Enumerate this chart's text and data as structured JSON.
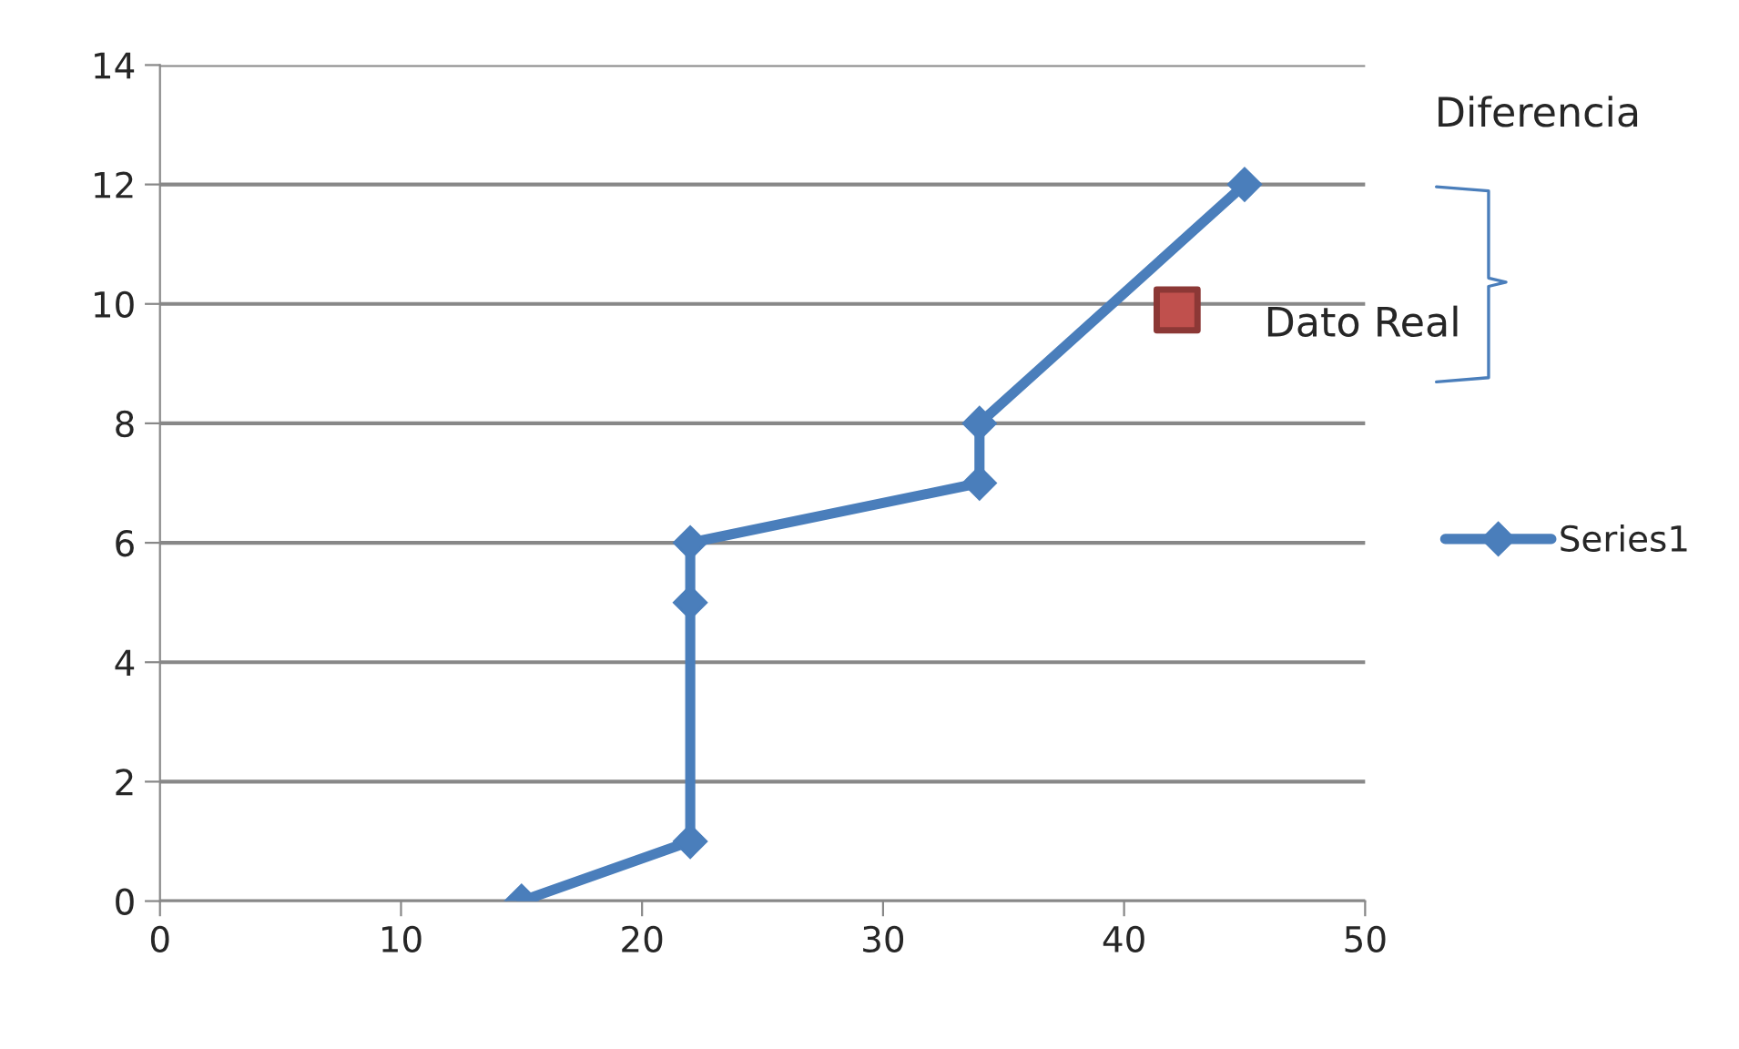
{
  "chart_data": {
    "type": "line",
    "series": [
      {
        "name": "Series1",
        "color": "#4a7ebb",
        "marker": "diamond",
        "x": [
          15,
          22,
          22,
          22,
          34,
          34,
          45
        ],
        "values": [
          0,
          1,
          5,
          6,
          7,
          8,
          12
        ]
      },
      {
        "type": "scatter",
        "color": "#c0504d",
        "marker": "square",
        "x": [
          42.2
        ],
        "values": [
          9.9
        ]
      }
    ],
    "xlim": [
      0,
      50
    ],
    "xticks": [
      0,
      10,
      20,
      30,
      40,
      50
    ],
    "ylim": [
      0,
      14
    ],
    "yticks": [
      0,
      2,
      4,
      6,
      8,
      10,
      12,
      14
    ],
    "grid": "y",
    "legend": "right",
    "line_style": "solid",
    "annotations": [
      "Diferencia",
      "Dato Real"
    ]
  }
}
